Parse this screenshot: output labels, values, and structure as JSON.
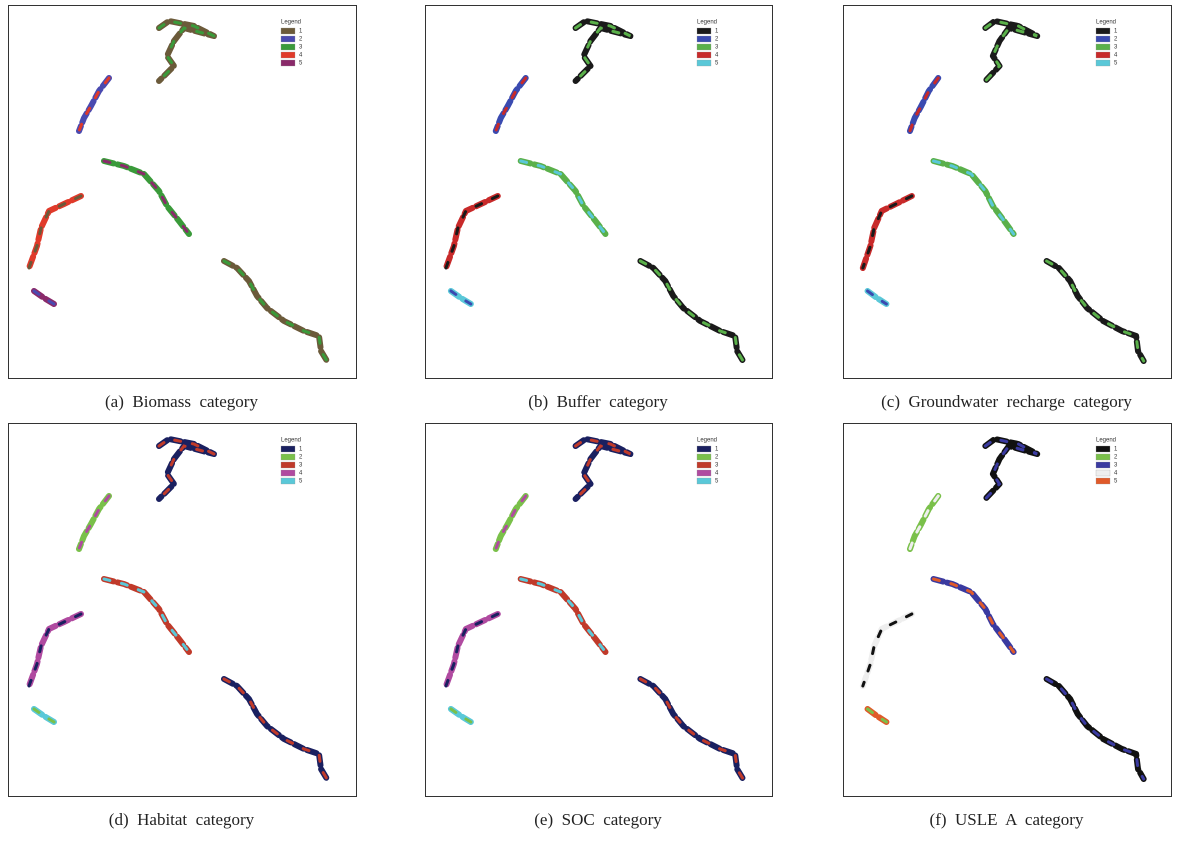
{
  "panels": [
    {
      "caption": "(a)  Biomass  category",
      "legend": {
        "title": "Legend",
        "items": [
          {
            "label": "1",
            "color": "#6b5a3a"
          },
          {
            "label": "2",
            "color": "#4a4ab0"
          },
          {
            "label": "3",
            "color": "#3a9a3a"
          },
          {
            "label": "4",
            "color": "#e03a2a"
          },
          {
            "label": "5",
            "color": "#8a2a6a"
          }
        ]
      }
    },
    {
      "caption": "(b)  Buffer  category",
      "legend": {
        "title": "Legend",
        "items": [
          {
            "label": "1",
            "color": "#1a1a1a"
          },
          {
            "label": "2",
            "color": "#3a4ab0"
          },
          {
            "label": "3",
            "color": "#5ab04a"
          },
          {
            "label": "4",
            "color": "#c82a2a"
          },
          {
            "label": "5",
            "color": "#5ac8d8"
          }
        ]
      }
    },
    {
      "caption": "(c)  Groundwater  recharge  category",
      "legend": {
        "title": "Legend",
        "items": [
          {
            "label": "1",
            "color": "#1a1a1a"
          },
          {
            "label": "2",
            "color": "#3a4ab0"
          },
          {
            "label": "3",
            "color": "#5ab04a"
          },
          {
            "label": "4",
            "color": "#c82a2a"
          },
          {
            "label": "5",
            "color": "#5ac8d8"
          }
        ]
      }
    },
    {
      "caption": "(d)  Habitat  category",
      "legend": {
        "title": "Legend",
        "items": [
          {
            "label": "1",
            "color": "#1a2060"
          },
          {
            "label": "2",
            "color": "#7ac04a"
          },
          {
            "label": "3",
            "color": "#c03a2a"
          },
          {
            "label": "4",
            "color": "#b04aa0"
          },
          {
            "label": "5",
            "color": "#5ac8d8"
          }
        ]
      }
    },
    {
      "caption": "(e)  SOC  category",
      "legend": {
        "title": "Legend",
        "items": [
          {
            "label": "1",
            "color": "#1a2060"
          },
          {
            "label": "2",
            "color": "#7ac04a"
          },
          {
            "label": "3",
            "color": "#c03a2a"
          },
          {
            "label": "4",
            "color": "#b04aa0"
          },
          {
            "label": "5",
            "color": "#5ac8d8"
          }
        ]
      }
    },
    {
      "caption": "(f)  USLE  A  category",
      "legend": {
        "title": "Legend",
        "items": [
          {
            "label": "1",
            "color": "#111111"
          },
          {
            "label": "2",
            "color": "#7ac04a"
          },
          {
            "label": "3",
            "color": "#3a3aa0"
          },
          {
            "label": "4",
            "color": "#eeeeee"
          },
          {
            "label": "5",
            "color": "#e05a2a"
          }
        ]
      }
    }
  ]
}
